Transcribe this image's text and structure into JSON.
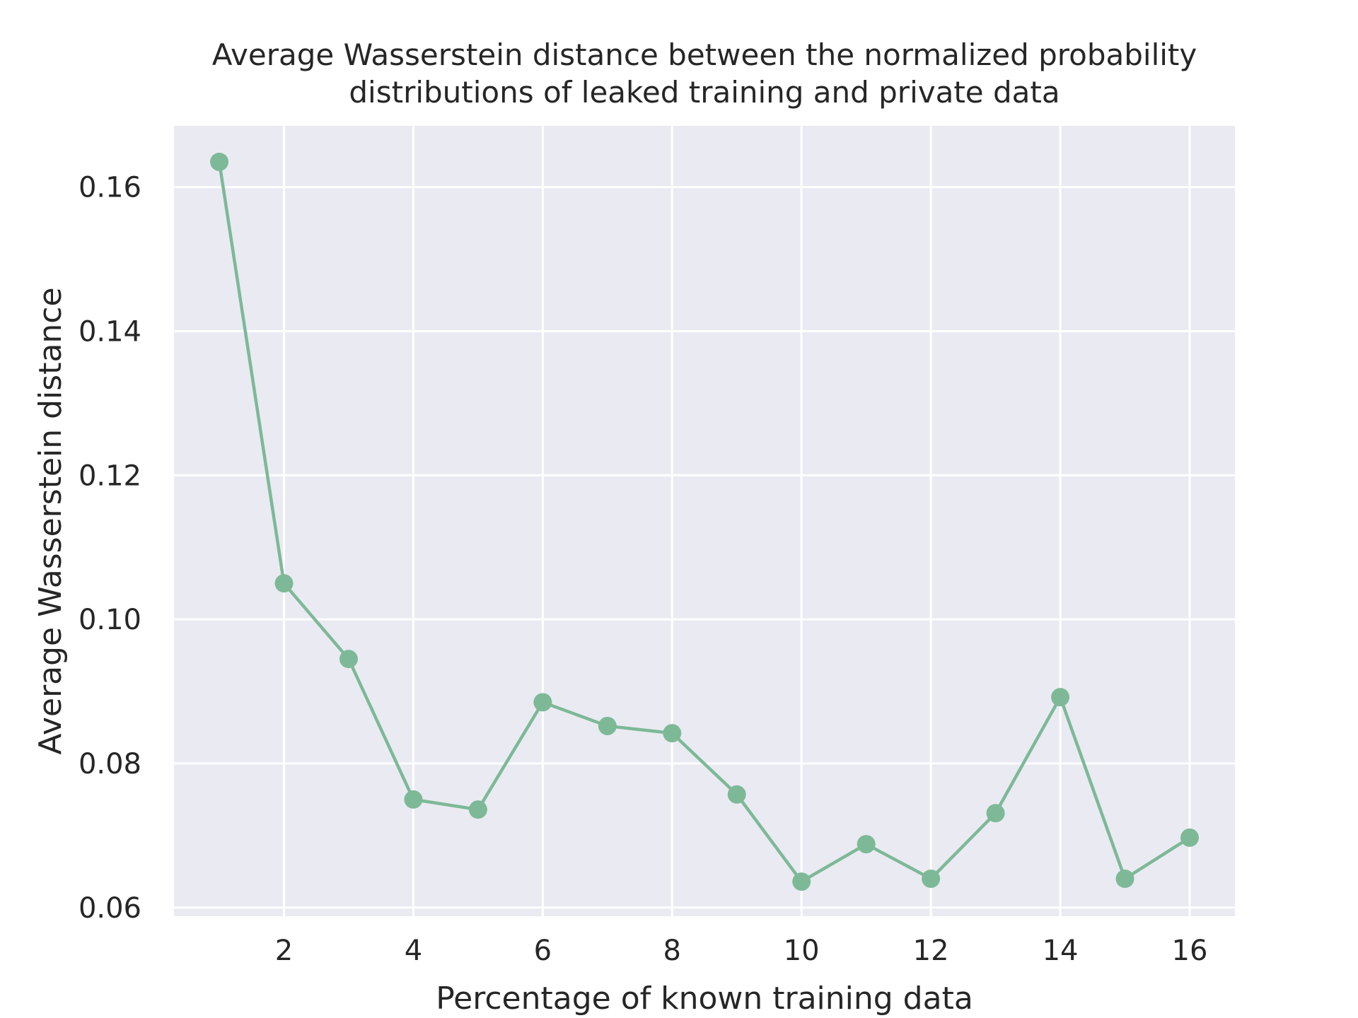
{
  "chart_data": {
    "type": "line",
    "title_lines": [
      "Average Wasserstein distance between the normalized probability",
      "distributions of leaked training and private data"
    ],
    "xlabel": "Percentage of known training data",
    "ylabel": "Average Wasserstein distance",
    "x": [
      1,
      2,
      3,
      4,
      5,
      6,
      7,
      8,
      9,
      10,
      11,
      12,
      13,
      14,
      15,
      16
    ],
    "series": [
      {
        "values": [
          0.1635,
          0.105,
          0.0945,
          0.075,
          0.0736,
          0.0885,
          0.0852,
          0.0842,
          0.0757,
          0.0636,
          0.0688,
          0.064,
          0.0731,
          0.0892,
          0.064,
          0.0697
        ],
        "color": "#7db997",
        "marker": "circle"
      }
    ],
    "xlim": [
      0.3,
      16.7
    ],
    "ylim": [
      0.0588,
      0.1685
    ],
    "xticks": [
      2,
      4,
      6,
      8,
      10,
      12,
      14,
      16
    ],
    "xtick_labels": [
      "2",
      "4",
      "6",
      "8",
      "10",
      "12",
      "14",
      "16"
    ],
    "yticks": [
      0.06,
      0.08,
      0.1,
      0.12,
      0.14,
      0.16
    ],
    "ytick_labels": [
      "0.06",
      "0.08",
      "0.10",
      "0.12",
      "0.14",
      "0.16"
    ],
    "grid": true,
    "background_color": "#eaeaf2",
    "grid_color": "#ffffff",
    "legend": "none"
  }
}
